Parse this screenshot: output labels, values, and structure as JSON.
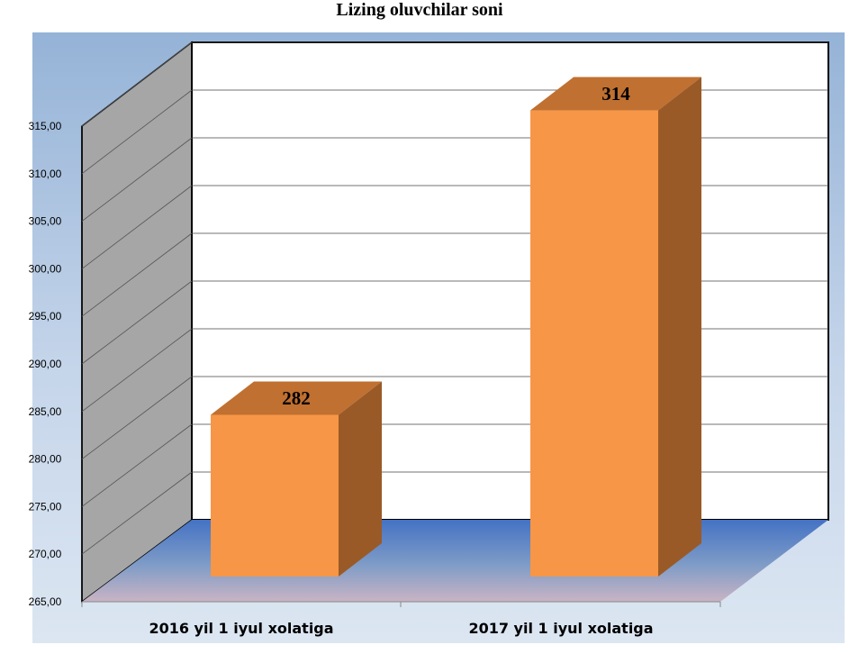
{
  "chart_data": {
    "type": "bar",
    "title": "Lizing oluvchilar soni",
    "categories": [
      "2016 yil 1 iyul xolatiga",
      "2017 yil 1 iyul xolatiga"
    ],
    "values": [
      282,
      314
    ],
    "value_labels": [
      "282",
      "314"
    ],
    "ylim": [
      265,
      315
    ],
    "yticks": [
      265,
      270,
      275,
      280,
      285,
      290,
      295,
      300,
      305,
      310,
      315
    ],
    "ytick_labels": [
      "265,00",
      "270,00",
      "275,00",
      "280,00",
      "285,00",
      "290,00",
      "295,00",
      "300,00",
      "305,00",
      "310,00",
      "315,00"
    ],
    "grid": true,
    "legend": "none",
    "style_3d": true,
    "colors": {
      "bar_front": "#F79646",
      "bar_top": "#C07030",
      "bar_side": "#9A5A28",
      "side_wall": "#A6A6A6",
      "back_wall": "#FFFFFF",
      "floor": "#4F81BD",
      "background": "#DCE6F2"
    }
  }
}
